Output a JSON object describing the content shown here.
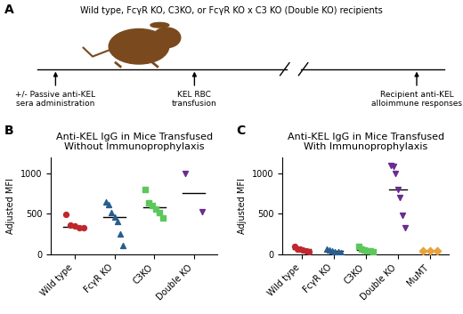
{
  "diagram": {
    "label": "A",
    "recipients": "Wild type, FcγR KO, C3KO, or FcγR KO x C3 KO (Double KO) recipients",
    "timeline": [
      {
        "label": "+/- Passive anti-KEL\nsera administration"
      },
      {
        "label": "KEL RBC\ntransfusion"
      },
      {
        "label": "Recipient anti-KEL\nalloimmune responses"
      }
    ]
  },
  "chart_data": [
    {
      "label": "B",
      "type": "scatter",
      "title": "Anti-KEL IgG in Mice Transfused\nWithout Immunoprophylaxis",
      "y_label": "Adjusted MFI",
      "ylim": [
        0,
        1200
      ],
      "yticks": [
        0,
        500,
        1000
      ],
      "series": [
        {
          "name": "Wild type",
          "color": "#c0282d",
          "marker": "circle",
          "values": [
            490,
            360,
            345,
            330,
            325
          ],
          "mean": 340
        },
        {
          "name": "FcγR KO",
          "color": "#2a5d8f",
          "marker": "triangle_up",
          "values": [
            650,
            610,
            520,
            460,
            400,
            250,
            110
          ],
          "mean": 460
        },
        {
          "name": "C3KO",
          "color": "#5cc85c",
          "marker": "square",
          "values": [
            800,
            640,
            600,
            560,
            510,
            450
          ],
          "mean": 580
        },
        {
          "name": "Double KO",
          "color": "#6a2c91",
          "marker": "triangle_down",
          "values": [
            1000,
            530
          ],
          "mean": 760
        }
      ]
    },
    {
      "label": "C",
      "type": "scatter",
      "title": "Anti-KEL IgG in Mice Transfused\nWith Immunoprophylaxis",
      "y_label": "Adjusted MFI",
      "ylim": [
        0,
        1200
      ],
      "yticks": [
        0,
        500,
        1000
      ],
      "series": [
        {
          "name": "Wild type",
          "color": "#c0282d",
          "marker": "circle",
          "values": [
            100,
            70,
            60,
            50,
            40,
            30
          ],
          "mean": 60
        },
        {
          "name": "FcγR KO",
          "color": "#2a5d8f",
          "marker": "triangle_up",
          "values": [
            60,
            50,
            40,
            30,
            30,
            25
          ],
          "mean": 40
        },
        {
          "name": "C3KO",
          "color": "#5cc85c",
          "marker": "square",
          "values": [
            100,
            60,
            50,
            40,
            40,
            30
          ],
          "mean": 55
        },
        {
          "name": "Double KO",
          "color": "#6a2c91",
          "marker": "triangle_down",
          "values": [
            1100,
            1080,
            1000,
            800,
            700,
            480,
            330
          ],
          "mean": 800
        },
        {
          "name": "MuMT",
          "color": "#e8a33d",
          "marker": "diamond",
          "values": [
            40,
            40,
            40
          ],
          "mean": 40
        }
      ]
    }
  ]
}
